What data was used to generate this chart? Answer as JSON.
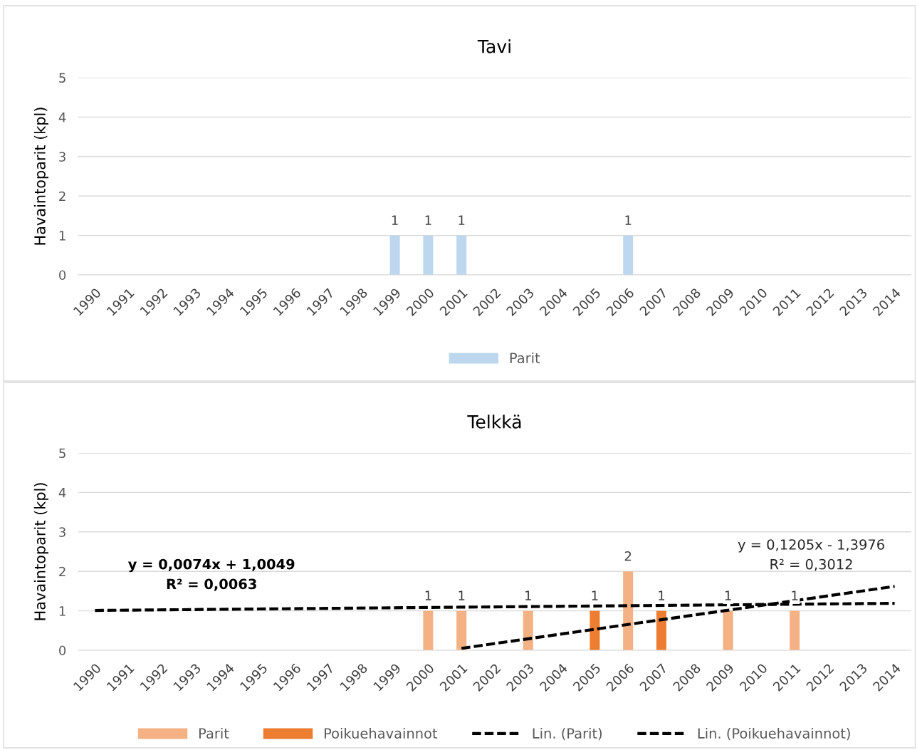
{
  "chart_data": [
    {
      "type": "bar",
      "title": "Tavi",
      "ylabel": "Havaintoparit (kpl)",
      "categories": [
        "1990",
        "1991",
        "1992",
        "1993",
        "1994",
        "1995",
        "1996",
        "1997",
        "1998",
        "1999",
        "2000",
        "2001",
        "2002",
        "2003",
        "2004",
        "2005",
        "2006",
        "2007",
        "2008",
        "2009",
        "2010",
        "2011",
        "2012",
        "2013",
        "2014"
      ],
      "series": [
        {
          "name": "Parit",
          "color": "#bdd7ee",
          "values": [
            null,
            null,
            null,
            null,
            null,
            null,
            null,
            null,
            null,
            1,
            1,
            1,
            null,
            null,
            null,
            null,
            1,
            null,
            null,
            null,
            null,
            null,
            null,
            null,
            null
          ],
          "value_labels": [
            null,
            null,
            null,
            null,
            null,
            null,
            null,
            null,
            null,
            "1",
            "1",
            "1",
            null,
            null,
            null,
            null,
            "1",
            null,
            null,
            null,
            null,
            null,
            null,
            null,
            null
          ]
        }
      ],
      "ylim": [
        0,
        5
      ],
      "yticks": [
        0,
        1,
        2,
        3,
        4,
        5
      ],
      "grid": "y",
      "legend": "bottom"
    },
    {
      "type": "bar",
      "title": "Telkkä",
      "ylabel": "Havaintoparit (kpl)",
      "categories": [
        "1990",
        "1991",
        "1992",
        "1993",
        "1994",
        "1995",
        "1996",
        "1997",
        "1998",
        "1999",
        "2000",
        "2001",
        "2002",
        "2003",
        "2004",
        "2005",
        "2006",
        "2007",
        "2008",
        "2009",
        "2010",
        "2011",
        "2012",
        "2013",
        "2014"
      ],
      "series": [
        {
          "name": "Parit",
          "color": "#f4b183",
          "values": [
            null,
            null,
            null,
            null,
            null,
            null,
            null,
            null,
            null,
            null,
            1,
            1,
            null,
            1,
            null,
            null,
            2,
            null,
            null,
            1,
            null,
            1,
            null,
            null,
            null
          ],
          "value_labels": [
            null,
            null,
            null,
            null,
            null,
            null,
            null,
            null,
            null,
            null,
            "1",
            "1",
            null,
            "1",
            null,
            null,
            "2",
            null,
            null,
            "1",
            null,
            "1",
            null,
            null,
            null
          ]
        },
        {
          "name": "Poikuehavainnot",
          "color": "#ed7d31",
          "values": [
            null,
            null,
            null,
            null,
            null,
            null,
            null,
            null,
            null,
            null,
            null,
            null,
            null,
            null,
            null,
            1,
            null,
            1,
            null,
            null,
            null,
            null,
            null,
            null,
            null
          ],
          "value_labels": [
            null,
            null,
            null,
            null,
            null,
            null,
            null,
            null,
            null,
            null,
            null,
            null,
            null,
            null,
            null,
            "1",
            null,
            "1",
            null,
            null,
            null,
            null,
            null,
            null,
            null
          ]
        },
        {
          "name": "Lin. (Parit)",
          "type": "line",
          "color": "#000000",
          "line_style": "dashed",
          "values": [
            1.01,
            null,
            null,
            null,
            null,
            null,
            null,
            null,
            null,
            null,
            null,
            null,
            null,
            null,
            null,
            null,
            null,
            null,
            null,
            null,
            null,
            null,
            null,
            null,
            1.19
          ]
        },
        {
          "name": "Lin. (Poikuehavainnot)",
          "type": "line",
          "color": "#000000",
          "line_style": "dashed",
          "values": [
            null,
            null,
            null,
            null,
            null,
            null,
            null,
            null,
            null,
            null,
            null,
            0.05,
            null,
            null,
            null,
            null,
            null,
            null,
            null,
            null,
            null,
            null,
            null,
            null,
            1.62
          ]
        }
      ],
      "annotations": [
        "y = 0,0074x + 1,0049\nR² = 0,0063",
        "y = 0,1205x - 1,3976\nR² = 0,3012"
      ],
      "ylim": [
        0,
        5
      ],
      "yticks": [
        0,
        1,
        2,
        3,
        4,
        5
      ],
      "grid": "y",
      "legend": "bottom"
    }
  ]
}
